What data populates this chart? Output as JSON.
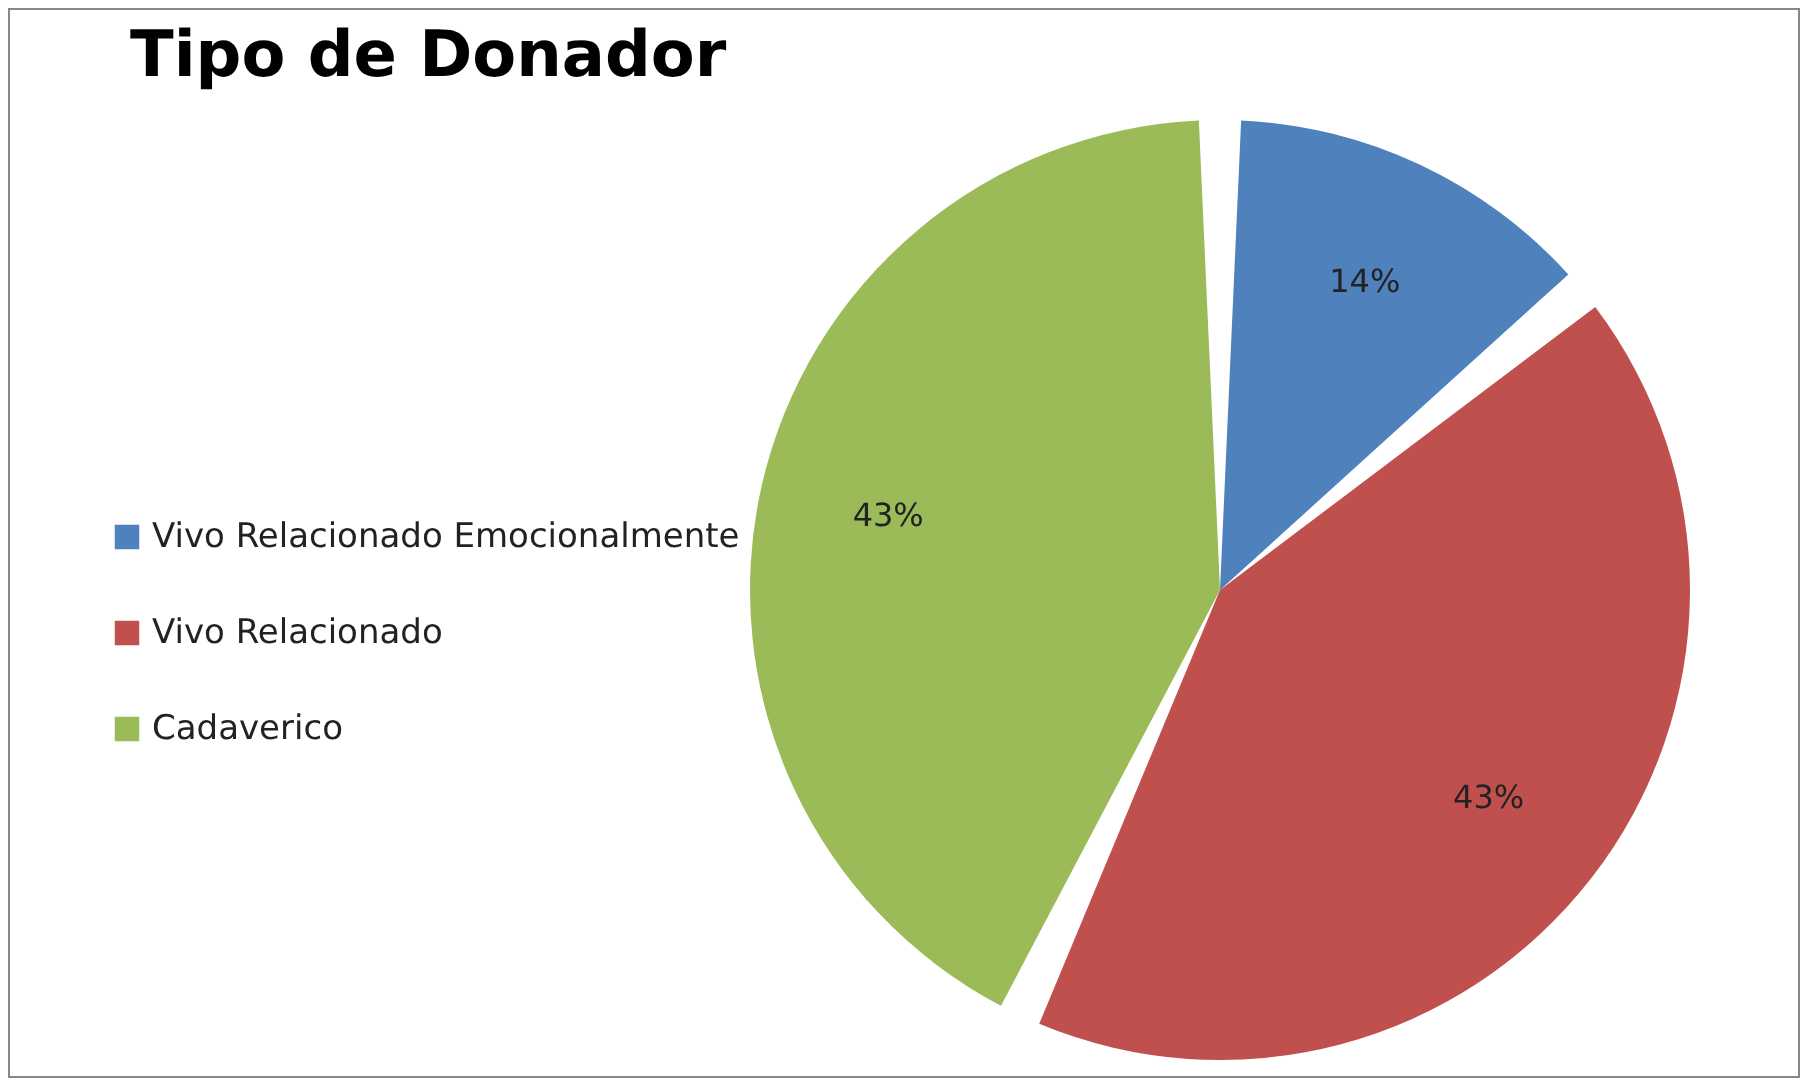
{
  "chart_data": {
    "type": "pie",
    "title": "Tipo de Donador",
    "categories": [
      "Vivo Relacionado Emocionalmente",
      "Vivo Relacionado",
      "Cadaverico"
    ],
    "values": [
      14,
      43,
      43
    ],
    "colors": [
      "#4f81bd",
      "#c0504d",
      "#9bbb59"
    ],
    "value_labels": [
      "14%",
      "43%",
      "43%"
    ],
    "legend": "left"
  }
}
